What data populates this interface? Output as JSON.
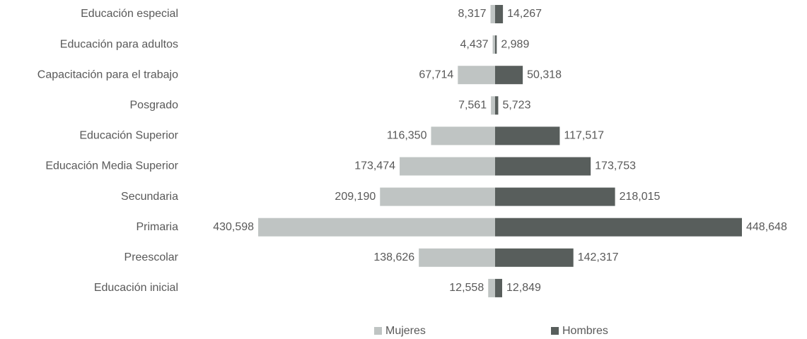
{
  "chart_data": {
    "type": "butterfly",
    "categories": [
      "Educación especial",
      "Educación para adultos",
      "Capacitación para el trabajo",
      "Posgrado",
      "Educación Superior",
      "Educación Media Superior",
      "Secundaria",
      "Primaria",
      "Preescolar",
      "Educación inicial"
    ],
    "series": [
      {
        "name": "Mujeres",
        "color": "#bfc4c3",
        "values": [
          8317,
          4437,
          67714,
          7561,
          116350,
          173474,
          209190,
          430598,
          138626,
          12558
        ],
        "value_labels": [
          "8,317",
          "4,437",
          "67,714",
          "7,561",
          "116,350",
          "173,474",
          "209,190",
          "430,598",
          "138,626",
          "12,558"
        ]
      },
      {
        "name": "Hombres",
        "color": "#585e5c",
        "values": [
          14267,
          2989,
          50318,
          5723,
          117517,
          173753,
          218015,
          448648,
          142317,
          12849
        ],
        "value_labels": [
          "14,267",
          "2,989",
          "50,318",
          "5,723",
          "117,517",
          "173,753",
          "218,015",
          "448,648",
          "142,317",
          "12,849"
        ]
      }
    ]
  }
}
